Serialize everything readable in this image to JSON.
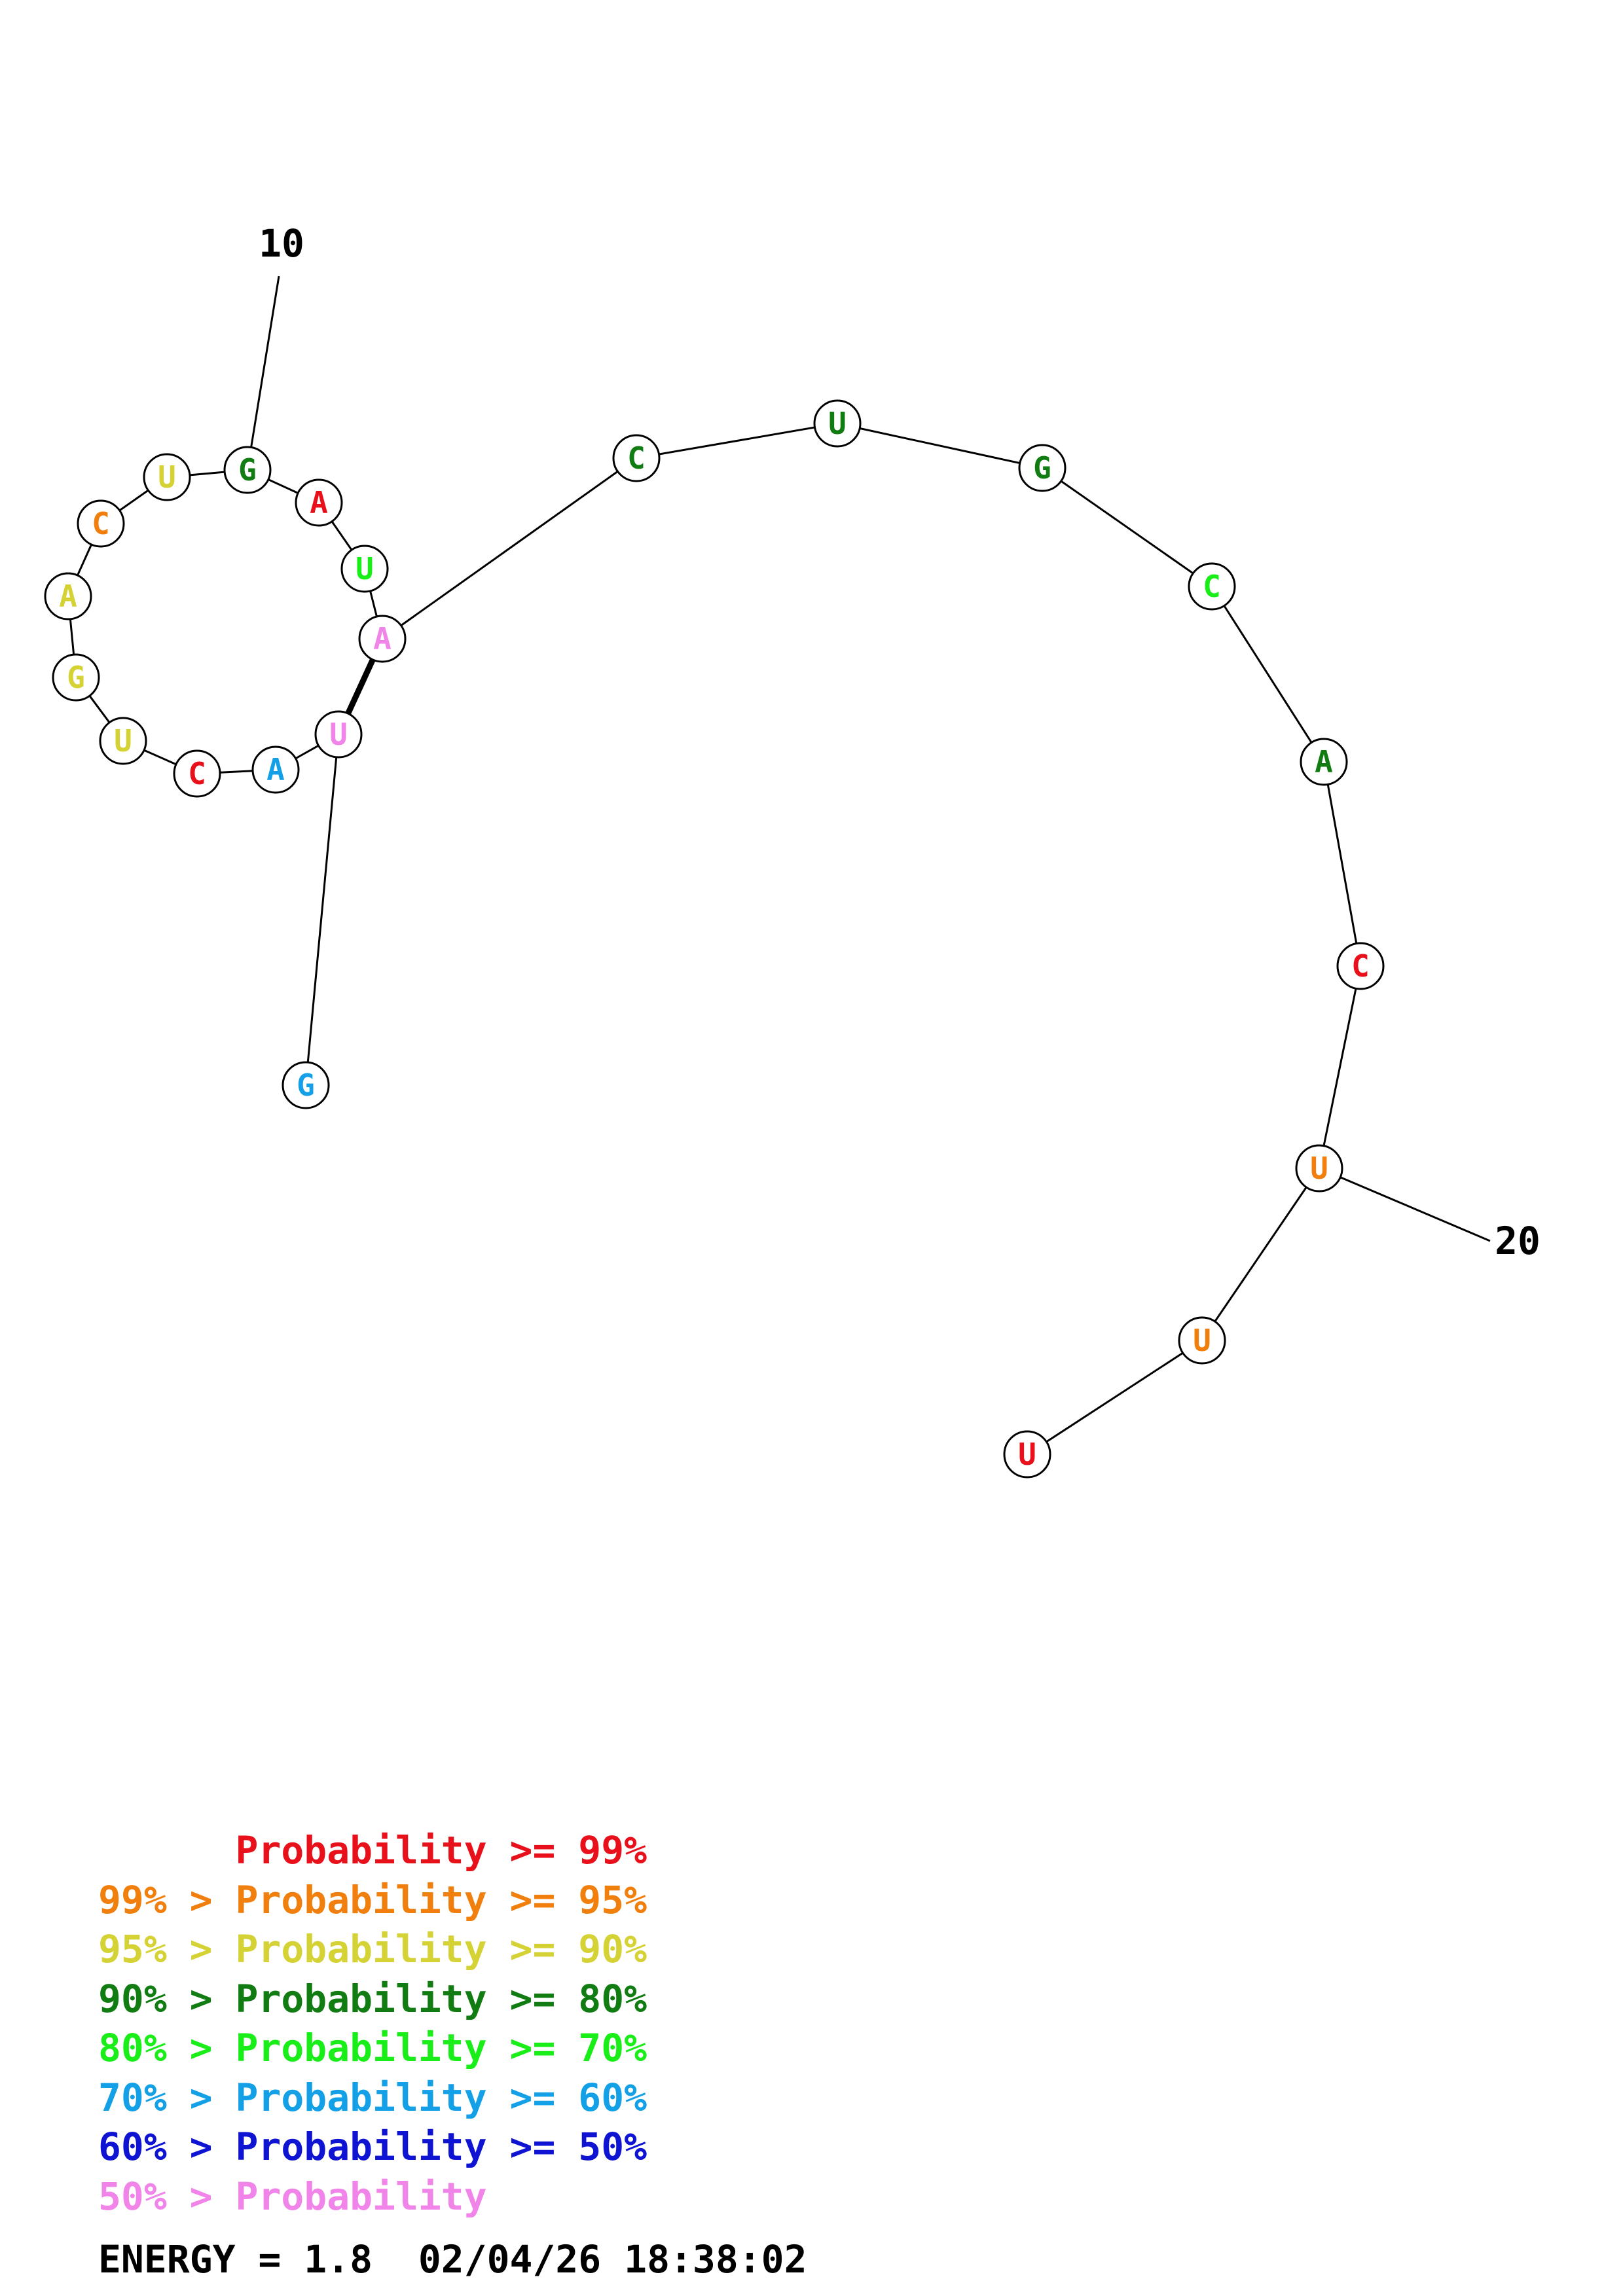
{
  "colors": {
    "p99": "#e8101a",
    "p95": "#f07f0d",
    "p90": "#d4d234",
    "p80": "#117c11",
    "p70": "#19ee19",
    "p60": "#14a0e6",
    "p50": "#0f13d2",
    "plow": "#f084e8"
  },
  "nucleotides": [
    {
      "base": "G",
      "color": "p60"
    },
    {
      "base": "U",
      "color": "plow"
    },
    {
      "base": "A",
      "color": "p60"
    },
    {
      "base": "C",
      "color": "p99"
    },
    {
      "base": "U",
      "color": "p90"
    },
    {
      "base": "G",
      "color": "p90"
    },
    {
      "base": "A",
      "color": "p90"
    },
    {
      "base": "C",
      "color": "p95"
    },
    {
      "base": "U",
      "color": "p90"
    },
    {
      "base": "G",
      "color": "p80"
    },
    {
      "base": "A",
      "color": "p99"
    },
    {
      "base": "U",
      "color": "p70"
    },
    {
      "base": "A",
      "color": "plow"
    },
    {
      "base": "C",
      "color": "p80"
    },
    {
      "base": "U",
      "color": "p80"
    },
    {
      "base": "G",
      "color": "p80"
    },
    {
      "base": "C",
      "color": "p70"
    },
    {
      "base": "A",
      "color": "p80"
    },
    {
      "base": "C",
      "color": "p99"
    },
    {
      "base": "U",
      "color": "p95"
    },
    {
      "base": "U",
      "color": "p95"
    },
    {
      "base": "U",
      "color": "p99"
    }
  ],
  "pairs": [
    [
      2,
      13
    ]
  ],
  "position_markers": [
    {
      "index": 10,
      "label": "10"
    },
    {
      "index": 20,
      "label": "20"
    }
  ],
  "legend": [
    {
      "prefix": "",
      "prefix_color": "p99",
      "text": "Probability >= 99%",
      "color": "p99"
    },
    {
      "prefix": "99% > ",
      "prefix_color": "p95",
      "text": "Probability >= 95%",
      "color": "p95"
    },
    {
      "prefix": "95% > ",
      "prefix_color": "p90",
      "text": "Probability >= 90%",
      "color": "p90"
    },
    {
      "prefix": "90% > ",
      "prefix_color": "p80",
      "text": "Probability >= 80%",
      "color": "p80"
    },
    {
      "prefix": "80% > ",
      "prefix_color": "p70",
      "text": "Probability >= 70%",
      "color": "p70"
    },
    {
      "prefix": "70% > ",
      "prefix_color": "p60",
      "text": "Probability >= 60%",
      "color": "p60"
    },
    {
      "prefix": "60% > ",
      "prefix_color": "p50",
      "text": "Probability >= 50%",
      "color": "p50"
    },
    {
      "prefix": "50% > ",
      "prefix_color": "plow",
      "text": "Probability",
      "color": "plow"
    }
  ],
  "energy": {
    "label": "ENERGY = 1.8",
    "timestamp": "02/04/26 18:38:02"
  }
}
